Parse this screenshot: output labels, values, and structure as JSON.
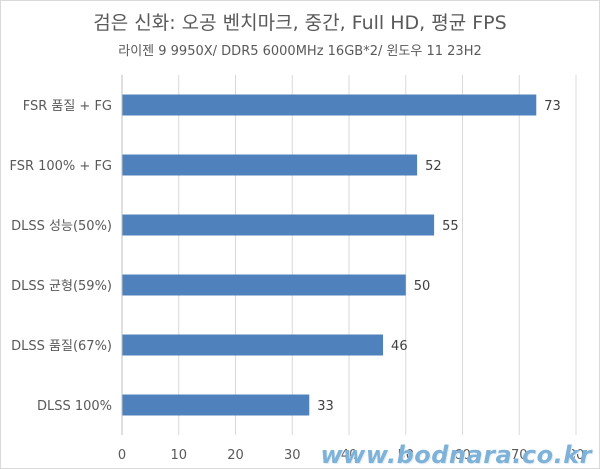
{
  "chart_data": {
    "type": "bar",
    "orientation": "horizontal",
    "title": "검은 신화: 오공 벤치마크, 중간, Full HD, 평균 FPS",
    "subtitle": "라이젠 9 9950X/ DDR5 6000MHz 16GB*2/ 윈도우 11 23H2",
    "categories": [
      "FSR 품질 + FG",
      "FSR 100% + FG",
      "DLSS 성능(50%)",
      "DLSS 균형(59%)",
      "DLSS 품질(67%)",
      "DLSS 100%"
    ],
    "values": [
      73,
      52,
      55,
      50,
      46,
      33
    ],
    "xlim": [
      0,
      80
    ],
    "xticks": [
      0,
      10,
      20,
      30,
      40,
      50,
      60,
      70,
      80
    ],
    "grid": true,
    "legend": "none",
    "bar_color": "#4f81bd",
    "data_labels": true
  },
  "watermark": "www.bodnara.co.kr"
}
